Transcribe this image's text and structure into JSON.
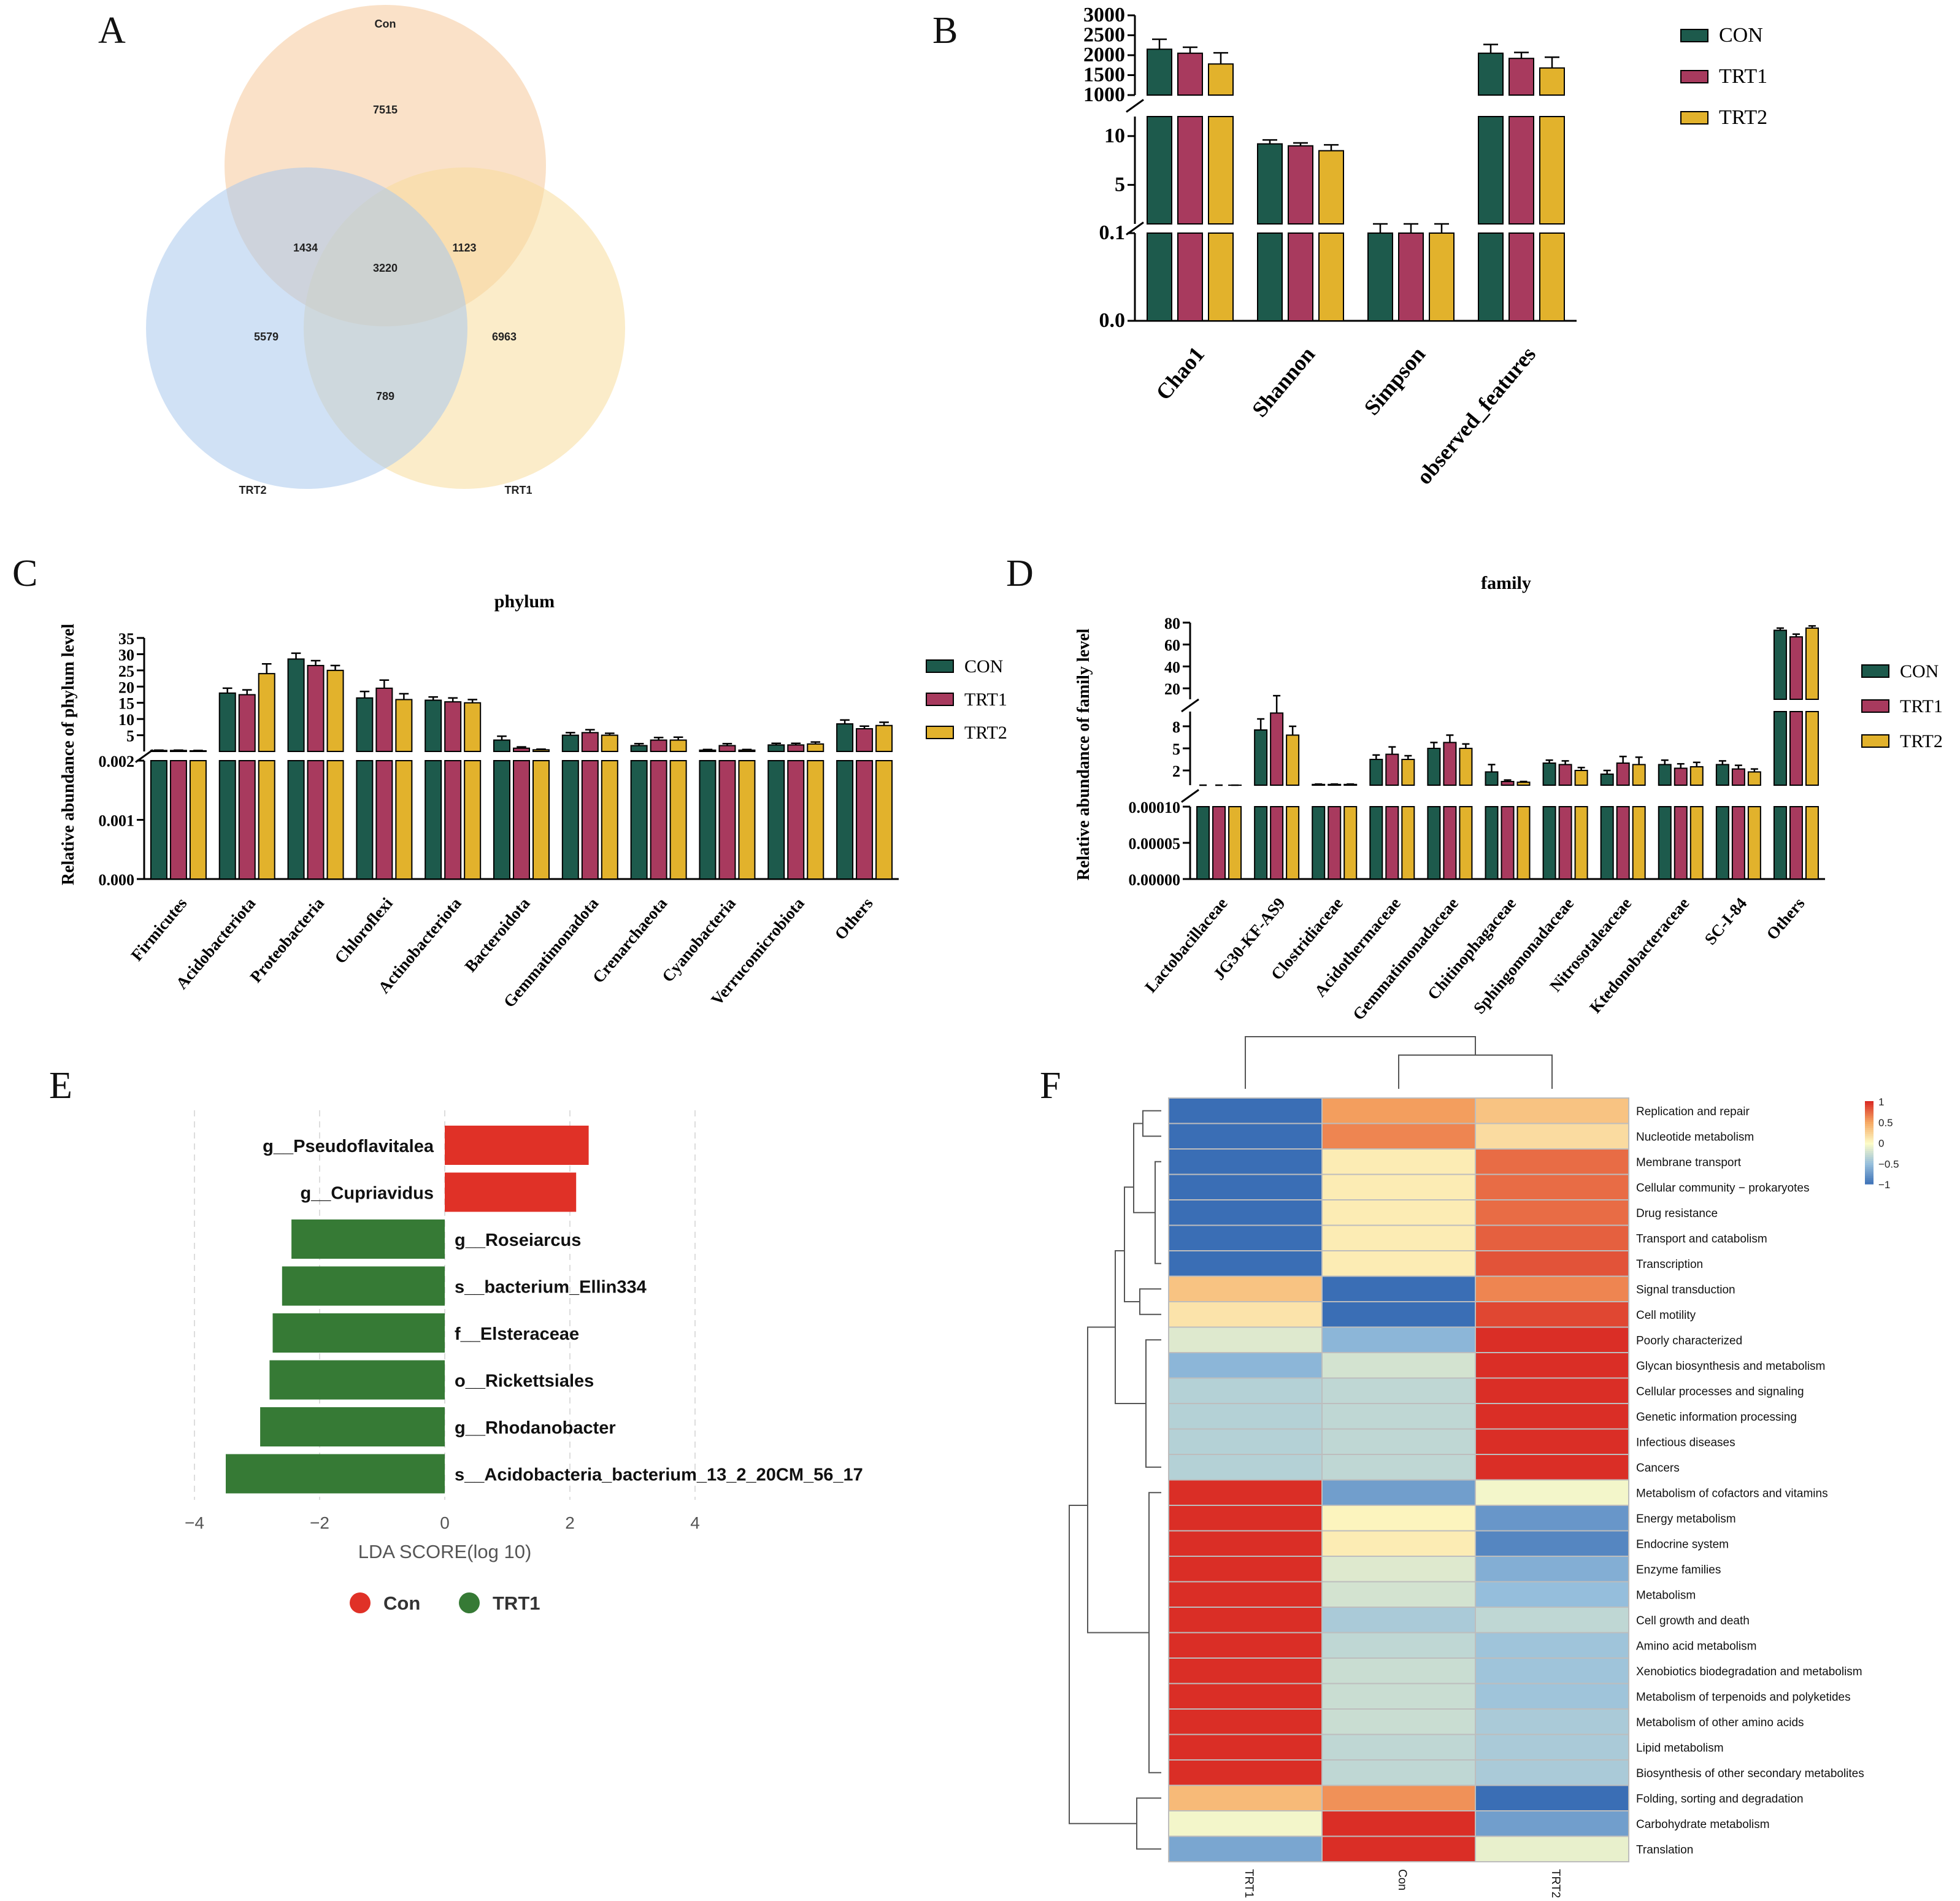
{
  "panel_labels": [
    "A",
    "B",
    "C",
    "D",
    "E",
    "F"
  ],
  "colors": {
    "CON": "#1d5a4c",
    "TRT1": "#a83a5e",
    "TRT2": "#e2b22c",
    "venn_con": "#f6c89b",
    "venn_trt1": "#f8dc9c",
    "venn_trt2": "#a9c8ec",
    "lda_con": "#e03127",
    "lda_trt1": "#367a35"
  },
  "chart_data": [
    {
      "panel": "A",
      "type": "venn",
      "sets": [
        "Con",
        "TRT1",
        "TRT2"
      ],
      "regions": {
        "Con_only": 7515,
        "TRT1_only": 6963,
        "TRT2_only": 5579,
        "Con_TRT2": 1434,
        "Con_TRT1": 1123,
        "TRT1_TRT2": 789,
        "all": 3220
      }
    },
    {
      "panel": "B",
      "type": "bar",
      "categories": [
        "Chao1",
        "Shannon",
        "Simpson",
        "observed_features"
      ],
      "legend": [
        "CON",
        "TRT1",
        "TRT2"
      ],
      "legend_position": "top-right",
      "y_segments": [
        {
          "range": [
            0.0,
            0.1
          ],
          "ticks": [
            "0.0",
            "0.1"
          ]
        },
        {
          "range": [
            1,
            12
          ],
          "ticks": [
            "5",
            "10"
          ]
        },
        {
          "range": [
            1000,
            3000
          ],
          "ticks": [
            "1000",
            "1500",
            "2000",
            "2500",
            "3000"
          ]
        }
      ],
      "series": [
        {
          "name": "CON",
          "values": [
            2150,
            9.2,
            0.99,
            2050
          ],
          "errors": [
            250,
            0.4,
            0.01,
            220
          ]
        },
        {
          "name": "TRT1",
          "values": [
            2050,
            9.0,
            0.99,
            1920
          ],
          "errors": [
            150,
            0.3,
            0.01,
            150
          ]
        },
        {
          "name": "TRT2",
          "values": [
            1780,
            8.5,
            0.99,
            1680
          ],
          "errors": [
            280,
            0.6,
            0.01,
            270
          ]
        }
      ]
    },
    {
      "panel": "C",
      "type": "bar",
      "title": "phylum",
      "ylabel": "Relative abundance of phylum level",
      "legend": [
        "CON",
        "TRT1",
        "TRT2"
      ],
      "legend_position": "right",
      "categories": [
        "Firmicutes",
        "Acidobacteriota",
        "Proteobacteria",
        "Chloroflexi",
        "Actinobacteriota",
        "Bacteroidota",
        "Gemmatimonadota",
        "Crenarchaeota",
        "Cyanobacteria",
        "Verrucomicrobiota",
        "Others"
      ],
      "y_segments": [
        {
          "range": [
            0.0,
            0.002
          ],
          "ticks": [
            "0.000",
            "0.001",
            "0.002"
          ]
        },
        {
          "range": [
            0,
            35
          ],
          "ticks": [
            "5",
            "10",
            "15",
            "20",
            "25",
            "30",
            "35"
          ]
        }
      ],
      "series": [
        {
          "name": "CON",
          "values": [
            0.3,
            18.0,
            28.5,
            16.5,
            15.8,
            3.5,
            5.0,
            1.8,
            0.4,
            2.0,
            8.5
          ],
          "errors": [
            0.1,
            1.5,
            1.8,
            2.0,
            1.0,
            1.2,
            0.8,
            0.6,
            0.2,
            0.5,
            1.2
          ]
        },
        {
          "name": "TRT1",
          "values": [
            0.3,
            17.5,
            26.5,
            19.5,
            15.3,
            1.0,
            5.8,
            3.5,
            1.8,
            2.0,
            7.0
          ],
          "errors": [
            0.1,
            1.5,
            1.5,
            2.5,
            1.2,
            0.4,
            0.9,
            0.8,
            0.6,
            0.5,
            0.8
          ]
        },
        {
          "name": "TRT2",
          "values": [
            0.2,
            24.0,
            25.0,
            16.0,
            15.0,
            0.5,
            5.0,
            3.5,
            0.4,
            2.3,
            8.0
          ],
          "errors": [
            0.1,
            3.0,
            1.5,
            1.8,
            1.0,
            0.2,
            0.6,
            0.9,
            0.2,
            0.6,
            1.0
          ]
        }
      ]
    },
    {
      "panel": "D",
      "type": "bar",
      "title": "family",
      "ylabel": "Relative abundance of family level",
      "legend": [
        "CON",
        "TRT1",
        "TRT2"
      ],
      "legend_position": "right",
      "categories": [
        "Lactobacillaceae",
        "JG30-KF-AS9",
        "Clostridiaceae",
        "Acidothermaceae",
        "Gemmatimonadaceae",
        "Chitinophagaceae",
        "Sphingomonadaceae",
        "Nitrosotaleaceae",
        "Ktedonobacteraceae",
        "SC-I-84",
        "Others"
      ],
      "y_segments": [
        {
          "range": [
            0.0,
            0.0001
          ],
          "ticks": [
            "0.00000",
            "0.00005",
            "0.00010"
          ]
        },
        {
          "range": [
            0,
            10
          ],
          "ticks": [
            "2",
            "5",
            "8"
          ]
        },
        {
          "range": [
            10,
            80
          ],
          "ticks": [
            "20",
            "40",
            "60",
            "80"
          ]
        }
      ],
      "series": [
        {
          "name": "CON",
          "values": [
            0.0,
            7.5,
            0.1,
            3.5,
            5.0,
            1.8,
            3.0,
            1.5,
            2.8,
            2.8,
            73.0
          ],
          "errors": [
            0.0,
            1.5,
            0.05,
            0.6,
            0.8,
            1.0,
            0.4,
            0.5,
            0.6,
            0.5,
            2.0
          ]
        },
        {
          "name": "TRT1",
          "values": [
            0.0,
            9.8,
            0.1,
            4.2,
            5.8,
            0.5,
            2.8,
            3.0,
            2.3,
            2.2,
            67.0
          ],
          "errors": [
            0.0,
            3.5,
            0.05,
            1.0,
            1.0,
            0.2,
            0.5,
            0.9,
            0.6,
            0.5,
            2.5
          ]
        },
        {
          "name": "TRT2",
          "values": [
            3e-05,
            6.8,
            0.1,
            3.5,
            5.0,
            0.4,
            2.0,
            2.8,
            2.5,
            1.8,
            75.0
          ],
          "errors": [
            2e-05,
            1.2,
            0.05,
            0.5,
            0.6,
            0.1,
            0.4,
            1.0,
            0.6,
            0.4,
            2.0
          ]
        }
      ]
    },
    {
      "panel": "E",
      "type": "bar",
      "orientation": "horizontal",
      "xlabel": "LDA SCORE(log 10)",
      "xlim": [
        -4,
        4
      ],
      "xticks": [
        "−4",
        "−2",
        "0",
        "2",
        "4"
      ],
      "legend": [
        "Con",
        "TRT1"
      ],
      "legend_position": "bottom",
      "bars": [
        {
          "label": "g__Pseudoflavitalea",
          "value": 2.3,
          "group": "Con"
        },
        {
          "label": "g__Cupriavidus",
          "value": 2.1,
          "group": "Con"
        },
        {
          "label": "g__Roseiarcus",
          "value": -2.45,
          "group": "TRT1"
        },
        {
          "label": "s__bacterium_Ellin334",
          "value": -2.6,
          "group": "TRT1"
        },
        {
          "label": "f__Elsteraceae",
          "value": -2.75,
          "group": "TRT1"
        },
        {
          "label": "o__Rickettsiales",
          "value": -2.8,
          "group": "TRT1"
        },
        {
          "label": "g__Rhodanobacter",
          "value": -2.95,
          "group": "TRT1"
        },
        {
          "label": "s__Acidobacteria_bacterium_13_2_20CM_56_17",
          "value": -3.5,
          "group": "TRT1"
        }
      ]
    },
    {
      "panel": "F",
      "type": "heatmap",
      "columns": [
        "TRT1",
        "Con",
        "TRT2"
      ],
      "colorbar_ticks": [
        "1",
        "0.5",
        "0",
        "−0.5",
        "−1"
      ],
      "rows": [
        "Replication and repair",
        "Nucleotide metabolism",
        "Membrane transport",
        "Cellular community − prokaryotes",
        "Drug resistance",
        "Transport and catabolism",
        "Transcription",
        "Signal transduction",
        "Cell motility",
        "Poorly characterized",
        "Glycan biosynthesis and metabolism",
        "Cellular processes and signaling",
        "Genetic information processing",
        "Infectious diseases",
        "Cancers",
        "Metabolism of cofactors and vitamins",
        "Energy metabolism",
        "Endocrine system",
        "Enzyme families",
        "Metabolism",
        "Cell growth and death",
        "Amino acid metabolism",
        "Xenobiotics biodegradation and metabolism",
        "Metabolism of terpenoids and polyketides",
        "Metabolism of other amino acids",
        "Lipid metabolism",
        "Biosynthesis of other secondary metabolites",
        "Folding, sorting and degradation",
        "Carbohydrate metabolism",
        "Translation"
      ],
      "values": [
        [
          -1.0,
          0.55,
          0.35
        ],
        [
          -1.0,
          0.65,
          0.2
        ],
        [
          -1.0,
          0.1,
          0.75
        ],
        [
          -1.0,
          0.1,
          0.75
        ],
        [
          -1.0,
          0.1,
          0.75
        ],
        [
          -1.0,
          0.1,
          0.8
        ],
        [
          -1.0,
          0.1,
          0.85
        ],
        [
          0.35,
          -1.0,
          0.65
        ],
        [
          0.15,
          -1.0,
          0.9
        ],
        [
          -0.15,
          -0.55,
          1.0
        ],
        [
          -0.55,
          -0.2,
          1.0
        ],
        [
          -0.35,
          -0.3,
          1.0
        ],
        [
          -0.35,
          -0.3,
          1.0
        ],
        [
          -0.35,
          -0.3,
          1.0
        ],
        [
          -0.35,
          -0.3,
          1.0
        ],
        [
          1.0,
          -0.7,
          -0.05
        ],
        [
          1.0,
          0.05,
          -0.75
        ],
        [
          1.0,
          0.1,
          -0.85
        ],
        [
          1.0,
          -0.15,
          -0.6
        ],
        [
          1.0,
          -0.2,
          -0.5
        ],
        [
          1.0,
          -0.4,
          -0.3
        ],
        [
          1.0,
          -0.3,
          -0.45
        ],
        [
          1.0,
          -0.25,
          -0.45
        ],
        [
          1.0,
          -0.25,
          -0.45
        ],
        [
          1.0,
          -0.25,
          -0.4
        ],
        [
          1.0,
          -0.3,
          -0.4
        ],
        [
          1.0,
          -0.3,
          -0.4
        ],
        [
          0.4,
          0.6,
          -1.0
        ],
        [
          -0.05,
          1.0,
          -0.7
        ],
        [
          -0.65,
          1.0,
          -0.1
        ]
      ],
      "row_dendrogram": true,
      "column_dendrogram": true
    }
  ]
}
